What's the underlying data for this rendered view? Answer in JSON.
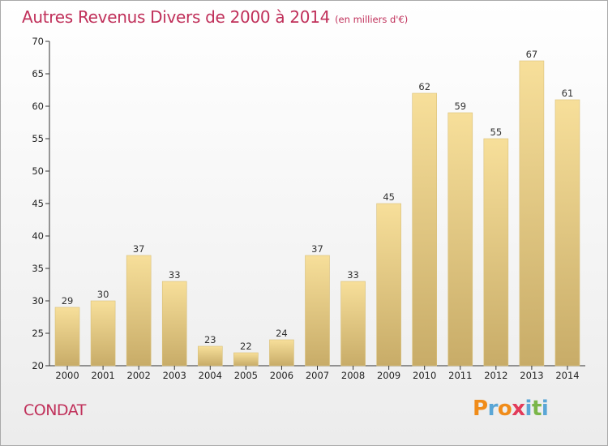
{
  "header": {
    "title": "Autres Revenus Divers de 2000 à 2014",
    "unit": "(en milliers d'€)"
  },
  "footer": {
    "town": "CONDAT",
    "brand": "Proxiti",
    "brand_colors": [
      "#f08c1a",
      "#5aa6d6",
      "#f08c1a",
      "#e23b5a",
      "#5aa6d6",
      "#7ab648",
      "#5aa6d6"
    ]
  },
  "colors": {
    "title": "#c0305a",
    "bar_light": "#f7df9a",
    "bar_dark": "#c8ac68",
    "bar_edge": "#d9c07a"
  },
  "chart_data": {
    "type": "bar",
    "title": "Autres Revenus Divers de 2000 à 2014",
    "subtitle": "(en milliers d'€)",
    "xlabel": "",
    "ylabel": "",
    "categories": [
      "2000",
      "2001",
      "2002",
      "2003",
      "2004",
      "2005",
      "2006",
      "2007",
      "2008",
      "2009",
      "2010",
      "2011",
      "2012",
      "2013",
      "2014"
    ],
    "values": [
      29,
      30,
      37,
      33,
      23,
      22,
      24,
      37,
      33,
      45,
      62,
      59,
      55,
      67,
      61
    ],
    "ylim": [
      20,
      70
    ],
    "yticks": [
      20,
      25,
      30,
      35,
      40,
      45,
      50,
      55,
      60,
      65,
      70
    ],
    "grid": false,
    "data_labels": true,
    "legend": "none"
  }
}
